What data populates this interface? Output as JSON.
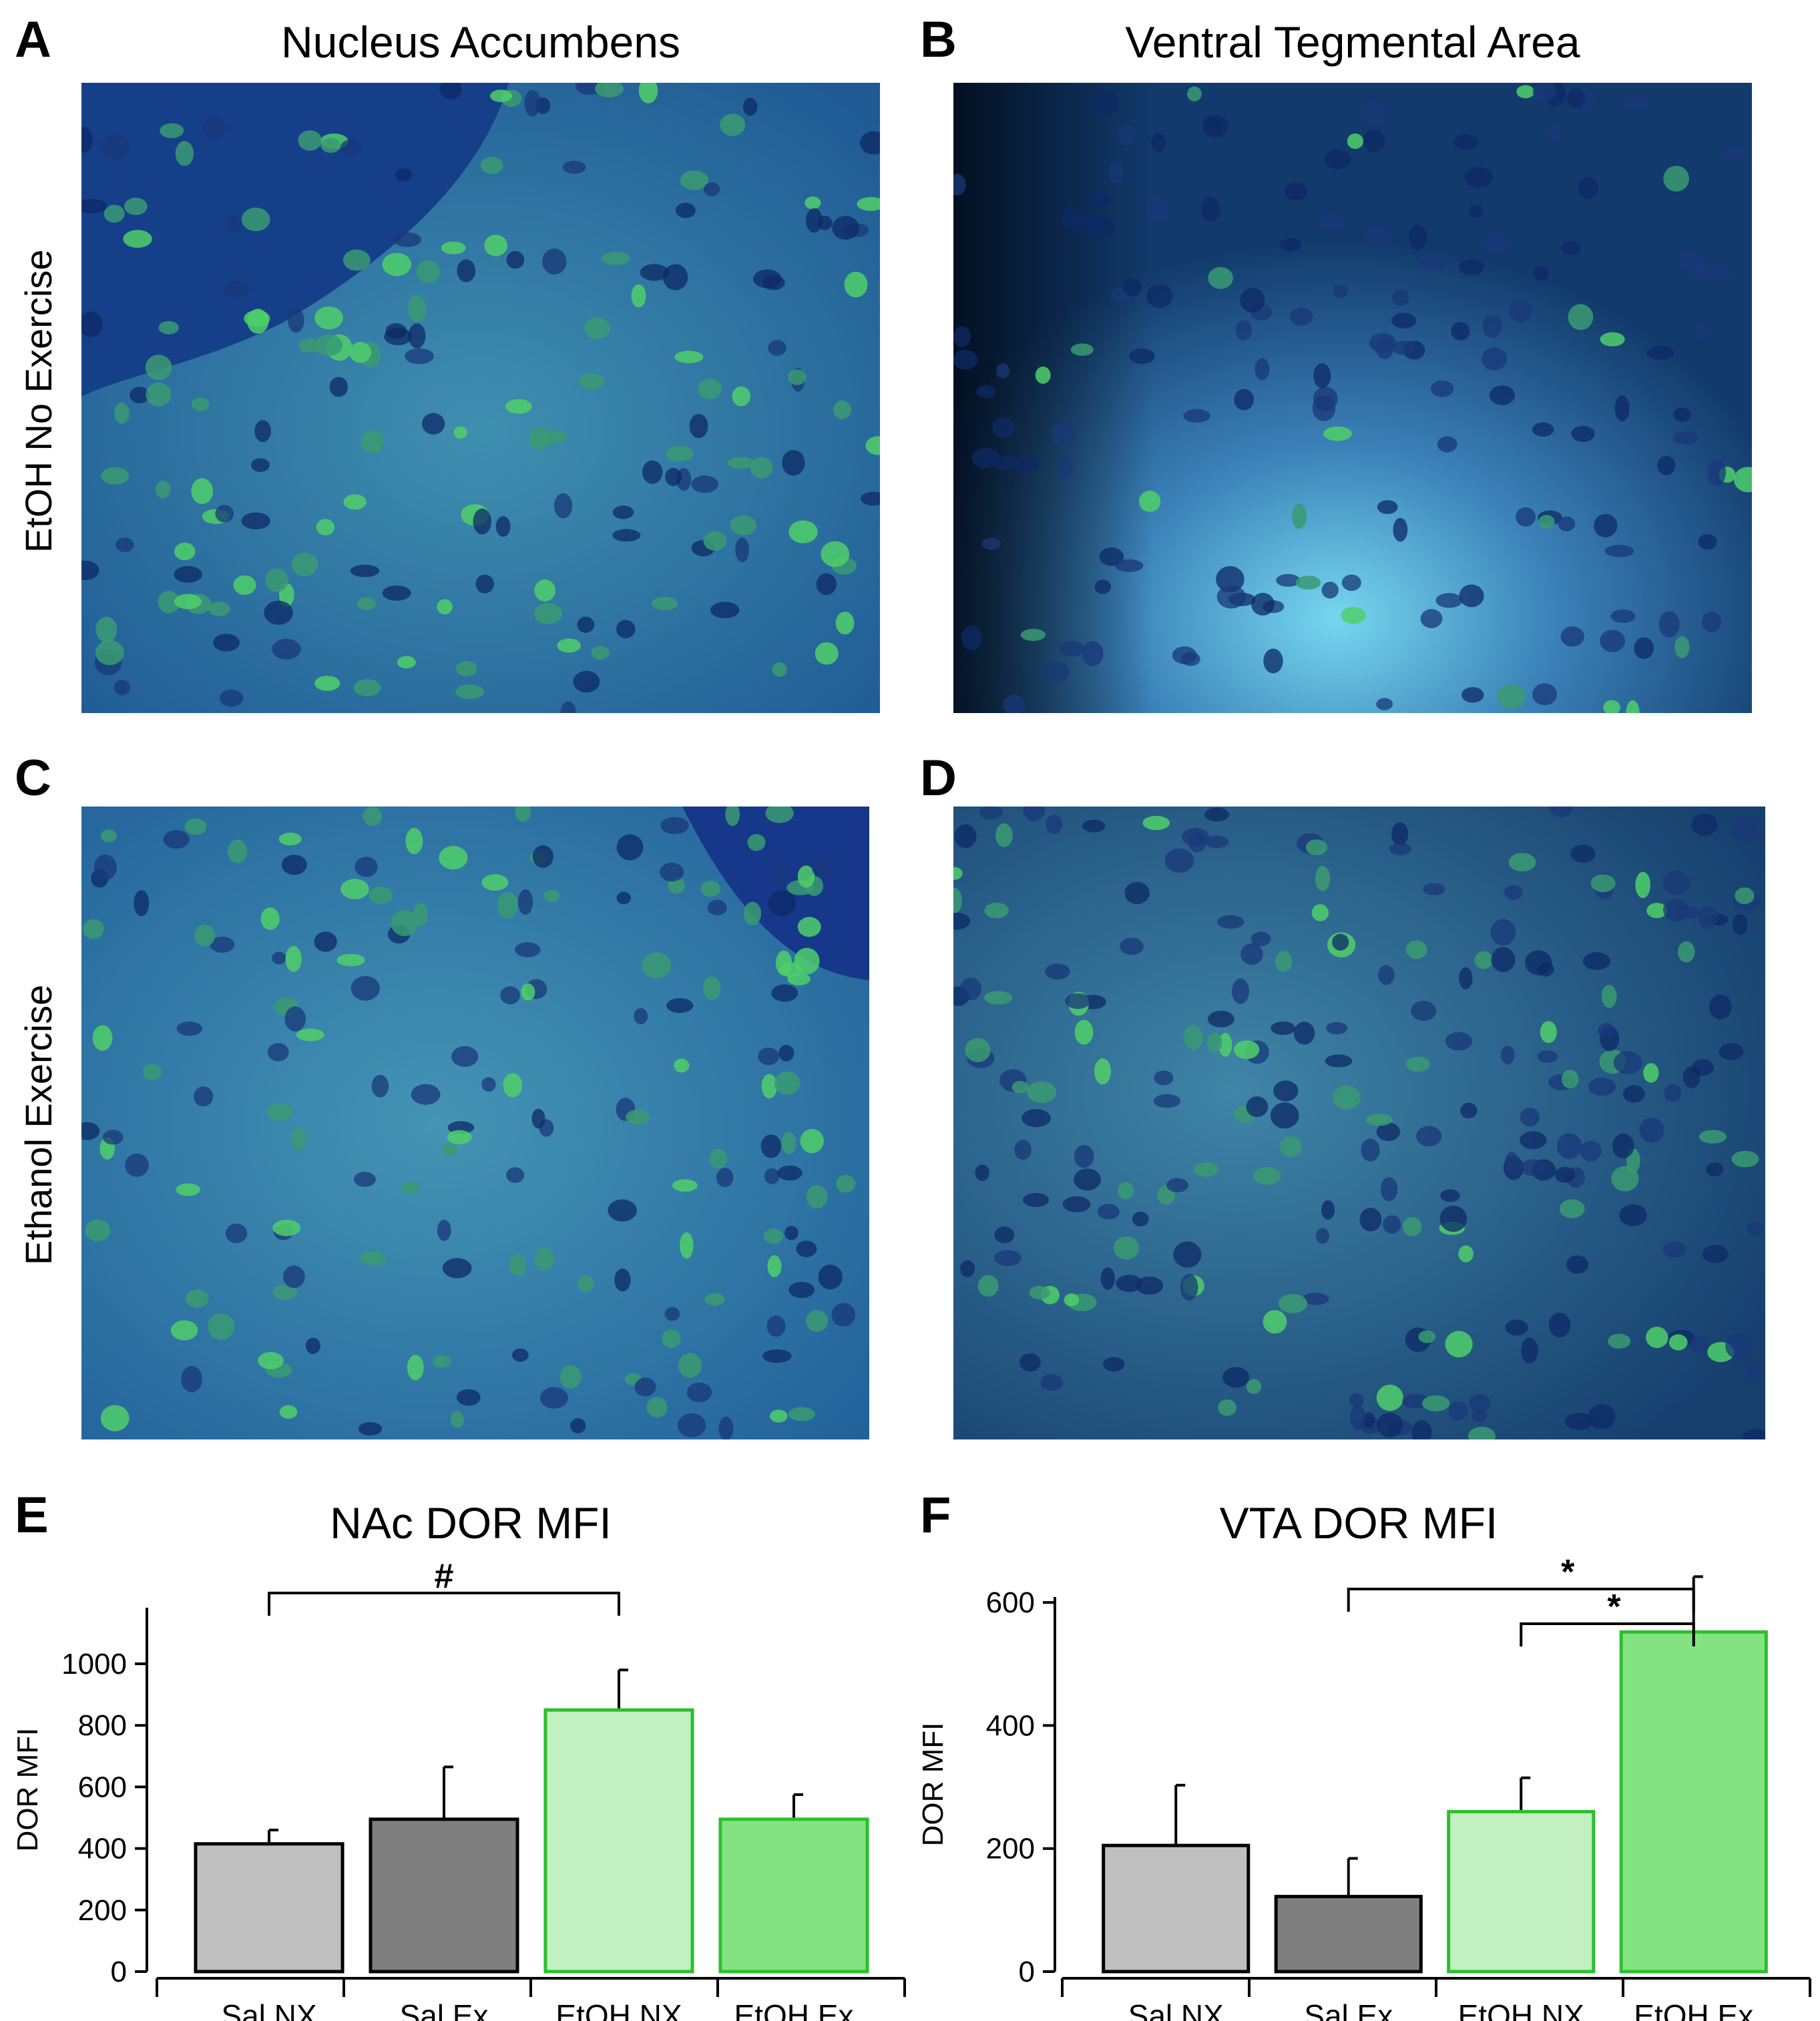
{
  "panels": {
    "A": {
      "letter": "A",
      "title": "Nucleus Accumbens"
    },
    "B": {
      "letter": "B",
      "title": "Ventral Tegmental Area"
    },
    "C": {
      "letter": "C"
    },
    "D": {
      "letter": "D"
    },
    "E": {
      "letter": "E"
    },
    "F": {
      "letter": "F"
    }
  },
  "row_labels": {
    "top": "EtOH No Exercise",
    "middle": "Ethanol Exercise"
  },
  "chart_data": [
    {
      "type": "bar",
      "title": "NAc DOR MFI",
      "ylabel": "DOR MFI",
      "xlabel": "",
      "categories": [
        "Sal NX",
        "Sal Ex",
        "EtOH NX",
        "EtOH Ex"
      ],
      "values": [
        415,
        495,
        850,
        495
      ],
      "errors": [
        45,
        170,
        130,
        80
      ],
      "ylim": [
        0,
        1000
      ],
      "yticks": [
        0,
        200,
        400,
        600,
        800,
        1000
      ],
      "fills": [
        "#bfbfbf",
        "#7f7f7f",
        "#c2f0c0",
        "#83e383"
      ],
      "strokes": [
        "#000000",
        "#000000",
        "#2dbf2d",
        "#2dbf2d"
      ],
      "significance": [
        {
          "from": 0,
          "to": 2,
          "label": "#"
        }
      ]
    },
    {
      "type": "bar",
      "title": "VTA DOR MFI",
      "ylabel": "DOR MFI",
      "xlabel": "",
      "categories": [
        "Sal NX",
        "Sal Ex",
        "EtOH NX",
        "EtOH Ex"
      ],
      "values": [
        205,
        122,
        260,
        552
      ],
      "errors": [
        98,
        62,
        55,
        90
      ],
      "ylim": [
        0,
        700
      ],
      "yticks": [
        0,
        200,
        400,
        600
      ],
      "fills": [
        "#bfbfbf",
        "#7f7f7f",
        "#c2f0c0",
        "#83e383"
      ],
      "strokes": [
        "#000000",
        "#000000",
        "#2dbf2d",
        "#2dbf2d"
      ],
      "significance": [
        {
          "from": 1,
          "to": 3,
          "label": "*"
        },
        {
          "from": 2,
          "to": 3,
          "label": "*"
        }
      ]
    }
  ]
}
